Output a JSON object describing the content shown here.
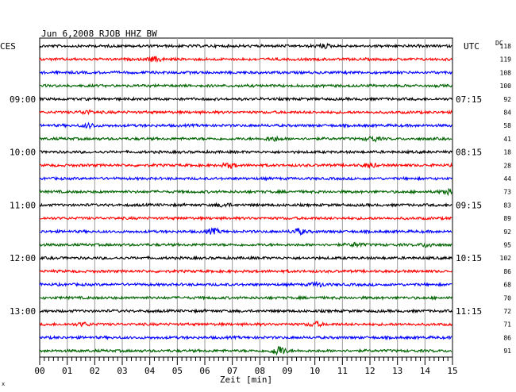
{
  "chart_data": {
    "type": "line",
    "title": "Jun 6,2008   RJOB HHZ BW",
    "left_timezone": "CES",
    "right_timezone": "UTC",
    "dc_label": "DC",
    "xlabel": "Zeit [min]",
    "xlim": [
      0,
      15
    ],
    "x_ticks": [
      "00",
      "01",
      "02",
      "03",
      "04",
      "05",
      "06",
      "07",
      "08",
      "09",
      "10",
      "11",
      "12",
      "13",
      "14",
      "15"
    ],
    "grid": true,
    "trace_colors": [
      "#000000",
      "#ff0000",
      "#0000ff",
      "#006400"
    ],
    "left_time_labels": [
      {
        "trace": 4,
        "label": "09:00"
      },
      {
        "trace": 8,
        "label": "10:00"
      },
      {
        "trace": 12,
        "label": "11:00"
      },
      {
        "trace": 16,
        "label": "12:00"
      },
      {
        "trace": 20,
        "label": "13:00"
      }
    ],
    "right_time_labels": [
      {
        "trace": 4,
        "label": "07:15"
      },
      {
        "trace": 8,
        "label": "08:15"
      },
      {
        "trace": 12,
        "label": "09:15"
      },
      {
        "trace": 16,
        "label": "10:15"
      },
      {
        "trace": 20,
        "label": "11:15"
      }
    ],
    "dc_values": [
      "118",
      "119",
      "108",
      "100",
      "92",
      "84",
      "58",
      "41",
      "18",
      "28",
      "44",
      "73",
      "83",
      "89",
      "92",
      "95",
      "102",
      "86",
      "68",
      "70",
      "72",
      "71",
      "86",
      "91"
    ],
    "events": [
      {
        "trace": 0,
        "minute": 10.3,
        "amp": 1.6
      },
      {
        "trace": 1,
        "minute": 4.2,
        "amp": 2.0
      },
      {
        "trace": 5,
        "minute": 1.7,
        "amp": 1.6
      },
      {
        "trace": 6,
        "minute": 1.8,
        "amp": 1.8
      },
      {
        "trace": 7,
        "minute": 8.5,
        "amp": 1.8
      },
      {
        "trace": 7,
        "minute": 12.1,
        "amp": 2.2
      },
      {
        "trace": 9,
        "minute": 6.9,
        "amp": 2.0
      },
      {
        "trace": 9,
        "minute": 12.0,
        "amp": 1.6
      },
      {
        "trace": 11,
        "minute": 14.8,
        "amp": 2.2
      },
      {
        "trace": 12,
        "minute": 6.7,
        "amp": 1.6
      },
      {
        "trace": 14,
        "minute": 6.3,
        "amp": 2.4
      },
      {
        "trace": 14,
        "minute": 9.4,
        "amp": 2.6
      },
      {
        "trace": 15,
        "minute": 11.5,
        "amp": 1.6
      },
      {
        "trace": 15,
        "minute": 14.1,
        "amp": 1.8
      },
      {
        "trace": 18,
        "minute": 10.1,
        "amp": 1.8
      },
      {
        "trace": 21,
        "minute": 1.6,
        "amp": 1.4
      },
      {
        "trace": 21,
        "minute": 10.0,
        "amp": 2.0
      },
      {
        "trace": 23,
        "minute": 8.7,
        "amp": 4.5
      }
    ]
  }
}
